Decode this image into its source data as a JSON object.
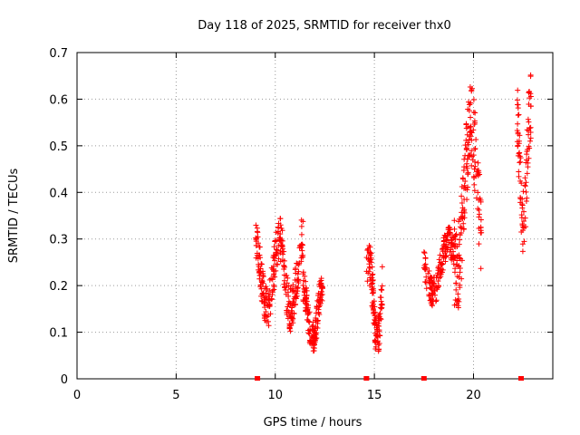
{
  "chart_data": {
    "type": "scatter",
    "title": "Day 118 of 2025, SRMTID for receiver thx0",
    "xlabel": "GPS time / hours",
    "ylabel": "SRMTID / TECUs",
    "xlim": [
      0,
      24
    ],
    "ylim": [
      0,
      0.7
    ],
    "xticks": [
      0,
      5,
      10,
      15,
      20
    ],
    "yticks": [
      0,
      0.1,
      0.2,
      0.3,
      0.4,
      0.5,
      0.6,
      0.7
    ],
    "grid": true,
    "marker": "+",
    "color": "#ff0000",
    "clusters": [
      {
        "x_range": [
          9.0,
          10.2
        ],
        "y_range": [
          0.1,
          0.35
        ],
        "count": 140
      },
      {
        "x_range": [
          10.2,
          11.4
        ],
        "y_range": [
          0.09,
          0.36
        ],
        "count": 140
      },
      {
        "x_range": [
          11.4,
          12.4
        ],
        "y_range": [
          0.05,
          0.24
        ],
        "count": 140
      },
      {
        "x_range": [
          14.6,
          15.4
        ],
        "y_range": [
          0.04,
          0.3
        ],
        "count": 120
      },
      {
        "x_range": [
          17.5,
          19.0
        ],
        "y_range": [
          0.15,
          0.33
        ],
        "count": 160
      },
      {
        "x_range": [
          19.0,
          20.4
        ],
        "y_range": [
          0.13,
          0.64
        ],
        "count": 180
      },
      {
        "x_range": [
          22.2,
          22.9
        ],
        "y_range": [
          0.26,
          0.66
        ],
        "count": 90
      }
    ],
    "baseline_markers_x": [
      9.1,
      14.6,
      17.5,
      22.4
    ]
  }
}
